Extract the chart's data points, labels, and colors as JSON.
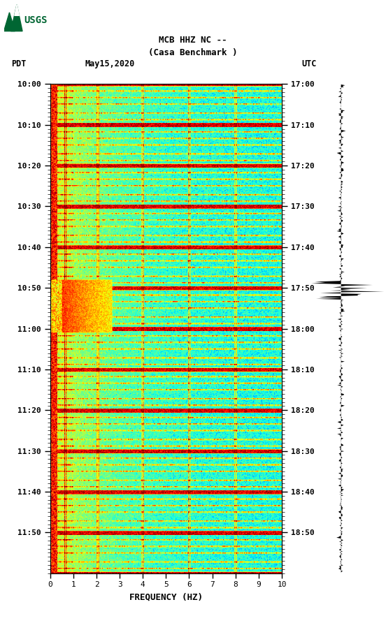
{
  "title_line1": "MCB HHZ NC --",
  "title_line2": "(Casa Benchmark )",
  "left_label": "PDT",
  "date_label": "May15,2020",
  "right_label": "UTC",
  "left_times": [
    "10:00",
    "10:10",
    "10:20",
    "10:30",
    "10:40",
    "10:50",
    "11:00",
    "11:10",
    "11:20",
    "11:30",
    "11:40",
    "11:50"
  ],
  "right_times": [
    "17:00",
    "17:10",
    "17:20",
    "17:30",
    "17:40",
    "17:50",
    "18:00",
    "18:10",
    "18:20",
    "18:30",
    "18:40",
    "18:50"
  ],
  "freq_label": "FREQUENCY (HZ)",
  "freq_ticks": [
    0,
    1,
    2,
    3,
    4,
    5,
    6,
    7,
    8,
    9,
    10
  ],
  "freq_min": 0,
  "freq_max": 10,
  "n_times": 600,
  "n_freqs": 300,
  "background_color": "#ffffff",
  "spectrogram_cmap": "jet",
  "logo_color": "#006633",
  "fig_width": 5.52,
  "fig_height": 8.92,
  "fig_dpi": 100
}
